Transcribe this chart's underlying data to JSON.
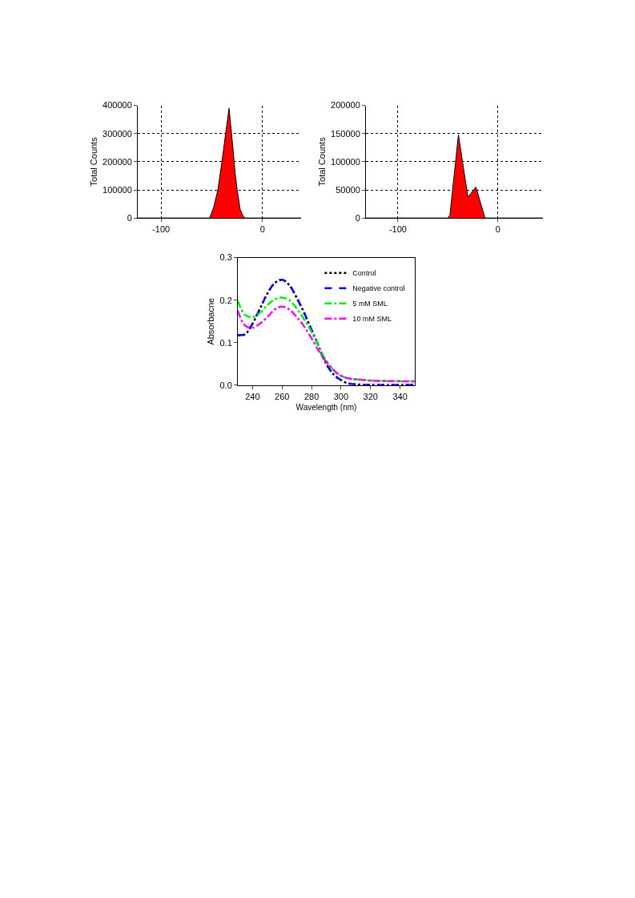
{
  "chart_data": [
    {
      "type": "area",
      "ylabel": "Total Counts",
      "xlim": [
        -123,
        38
      ],
      "xticks": [
        -100,
        0
      ],
      "ylim": [
        0,
        400000
      ],
      "yticks": [
        0,
        100000,
        200000,
        300000,
        400000
      ],
      "grid": true,
      "legend": false,
      "series": [
        {
          "color": "#ff0000",
          "x": [
            -123,
            -52,
            -48,
            -44,
            -40,
            -36,
            -33,
            -30,
            -27,
            -25,
            -22,
            -19,
            -17,
            38
          ],
          "values": [
            0,
            0,
            40000,
            100000,
            200000,
            310000,
            390000,
            280000,
            160000,
            100000,
            30000,
            5000,
            0,
            0
          ]
        }
      ]
    },
    {
      "type": "area",
      "ylabel": "Total Counts",
      "xlim": [
        -132,
        45
      ],
      "xticks": [
        -100,
        0
      ],
      "ylim": [
        0,
        200000
      ],
      "yticks": [
        0,
        50000,
        100000,
        150000,
        200000
      ],
      "grid": true,
      "legend": false,
      "series": [
        {
          "color": "#ff0000",
          "x": [
            -132,
            -50,
            -48,
            -39.5,
            -30,
            -22,
            -13,
            45
          ],
          "values": [
            0,
            0,
            5000,
            148000,
            37000,
            55000,
            0,
            0
          ]
        }
      ]
    },
    {
      "type": "line",
      "xlabel": "Wavelength (nm)",
      "ylabel": "Absorbacne",
      "xlim": [
        230,
        350
      ],
      "xticks": [
        240,
        260,
        280,
        300,
        320,
        340
      ],
      "ylim": [
        0,
        0.3
      ],
      "yticks": [
        {
          "value": 0,
          "label": "0.0"
        },
        0.1,
        0.2,
        0.3
      ],
      "grid": false,
      "legend": "top right",
      "x": [
        230,
        235,
        240,
        245,
        250,
        255,
        260,
        265,
        270,
        275,
        280,
        285,
        290,
        295,
        300,
        305,
        310,
        320,
        350
      ],
      "series": [
        {
          "name": "Control",
          "color": "#000000",
          "line_style": "dotted",
          "values": [
            0.118,
            0.12,
            0.145,
            0.18,
            0.215,
            0.24,
            0.248,
            0.235,
            0.205,
            0.17,
            0.13,
            0.09,
            0.05,
            0.025,
            0.012,
            0.004,
            0.002,
            0.001,
            0.001
          ]
        },
        {
          "name": "Negative control",
          "color": "#0000ff",
          "line_style": "dashed",
          "values": [
            0.118,
            0.12,
            0.145,
            0.18,
            0.215,
            0.24,
            0.248,
            0.235,
            0.205,
            0.17,
            0.13,
            0.09,
            0.05,
            0.025,
            0.012,
            0.004,
            0.002,
            0.001,
            0.001
          ]
        },
        {
          "name": "5 mM SML",
          "color": "#00ee00",
          "line_style": "dashdot",
          "values": [
            0.198,
            0.165,
            0.16,
            0.17,
            0.188,
            0.202,
            0.206,
            0.2,
            0.18,
            0.155,
            0.125,
            0.09,
            0.058,
            0.035,
            0.022,
            0.016,
            0.014,
            0.011,
            0.009
          ]
        },
        {
          "name": "10 mM SML",
          "color": "#ff00ff",
          "line_style": "dashdot",
          "values": [
            0.175,
            0.14,
            0.135,
            0.145,
            0.16,
            0.178,
            0.185,
            0.178,
            0.16,
            0.138,
            0.11,
            0.08,
            0.055,
            0.035,
            0.022,
            0.016,
            0.014,
            0.011,
            0.009
          ]
        }
      ]
    }
  ]
}
